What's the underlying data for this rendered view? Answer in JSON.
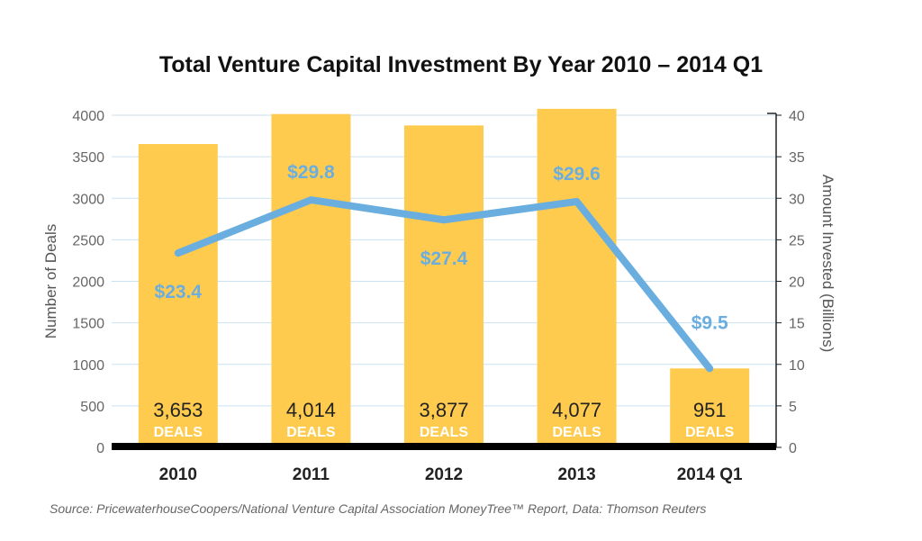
{
  "chart_data": {
    "type": "bar+line",
    "title": "Total Venture Capital Investment By Year 2010 – 2014 Q1",
    "source": "Source: PricewaterhouseCoopers/National Venture Capital Association MoneyTree™ Report, Data: Thomson Reuters",
    "categories": [
      "2010",
      "2011",
      "2012",
      "2013",
      "2014 Q1"
    ],
    "bars": {
      "values": [
        3653,
        4014,
        3877,
        4077,
        951
      ],
      "labels": [
        "3,653",
        "4,014",
        "3,877",
        "4,077",
        "951"
      ],
      "unit_label": "DEALS",
      "color": "#fecb4f"
    },
    "line": {
      "values": [
        23.4,
        29.8,
        27.4,
        29.6,
        9.5
      ],
      "labels": [
        "$23.4",
        "$29.8",
        "$27.4",
        "$29.6",
        "$9.5"
      ],
      "color": "#6aaee0"
    },
    "y_left": {
      "label": "Number of Deals",
      "ylim": [
        0,
        4000
      ],
      "ticks": [
        0,
        500,
        1000,
        1500,
        2000,
        2500,
        3000,
        3500,
        4000
      ]
    },
    "y_right": {
      "label": "Amount Invested (Billions)",
      "ylim": [
        0,
        40
      ],
      "ticks": [
        0,
        5,
        10,
        15,
        20,
        25,
        30,
        35,
        40
      ]
    },
    "grid": true
  }
}
